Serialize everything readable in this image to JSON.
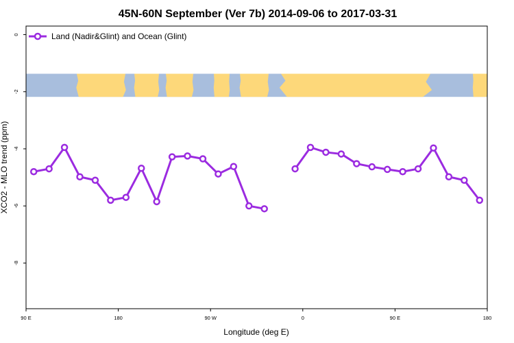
{
  "chart_data": {
    "type": "line",
    "title": "45N-60N September (Ver 7b)   2014-09-06 to 2017-03-31",
    "xlabel": "Longitude (deg E)",
    "ylabel": "XCO2 - MLO trend (ppm)",
    "xlim": [
      90,
      450
    ],
    "ylim": [
      -9.6,
      0.3
    ],
    "x_ticks": [
      90,
      180,
      270,
      360,
      450,
      540
    ],
    "x_tick_labels": [
      "90 E",
      "180",
      "90 W",
      "0",
      "90 E",
      "180"
    ],
    "y_ticks": [
      0,
      -2,
      -4,
      -6,
      -8
    ],
    "y_tick_labels": [
      "0",
      "-2",
      "-4",
      "-6",
      "-8"
    ],
    "legend_position": "top-left",
    "grid": false,
    "map_band": {
      "y_range": [
        -1.37,
        -2.18
      ],
      "land_color": "#fdd87a",
      "ocean_color": "#a8bedd"
    },
    "series": [
      {
        "name": "Land (Nadir&Glint) and Ocean (Glint)",
        "color": "#9b2be0",
        "segments": [
          {
            "x": [
              97.5,
              112.5,
              127.5,
              142.5,
              157.5,
              172.5,
              187.5,
              202.5,
              217.5,
              232.5,
              247.5,
              262.5,
              277.5,
              292.5,
              307.5,
              322.5
            ],
            "y": [
              -4.8,
              -4.7,
              -3.95,
              -4.98,
              -5.1,
              -5.8,
              -5.7,
              -4.68,
              -5.85,
              -4.28,
              -4.25,
              -4.35,
              -4.88,
              -4.62,
              -6.0,
              -6.1
            ]
          },
          {
            "x": [
              352.5,
              367.5,
              382.5,
              397.5,
              412.5,
              427.5,
              442.5,
              457.5,
              472.5,
              487.5,
              502.5,
              517.5,
              532.5
            ],
            "y": [
              -4.7,
              -3.95,
              -4.12,
              -4.18,
              -4.52,
              -4.63,
              -4.72,
              -4.8,
              -4.7,
              -3.97,
              -4.98,
              -5.1,
              -5.8
            ]
          }
        ]
      }
    ]
  }
}
